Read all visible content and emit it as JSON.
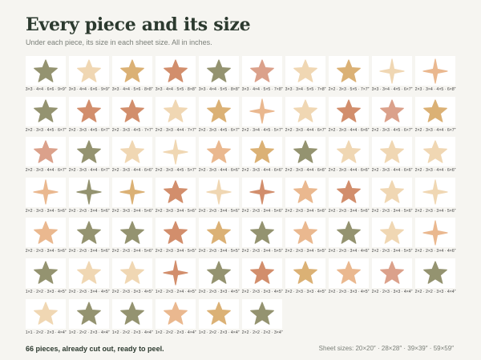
{
  "page": {
    "title": "Every piece and its size",
    "subtitle": "Under each piece, its size in each sheet size. All in inches.",
    "footer_note": "66 pieces, already cut out, ready to peel.",
    "footer_sizes": "Sheet sizes: 20×20″ · 28×28″ · 39×39″ · 59×59″"
  },
  "colors": {
    "olive": "#8c8a64",
    "terracotta": "#cf8560",
    "mustard": "#d9ab6a",
    "peach": "#e9b386",
    "sand": "#efd4ad",
    "blush": "#d99a82",
    "background": "#f6f5f1",
    "card": "#ffffff"
  },
  "pieces": [
    {
      "shape": "star",
      "color": "olive",
      "caption": "3×3 · 4×4 · 6×6 · 9×9″"
    },
    {
      "shape": "star",
      "color": "sand",
      "caption": "3×3 · 4×4 · 6×6 · 9×9″"
    },
    {
      "shape": "star",
      "color": "mustard",
      "caption": "3×3 · 4×4 · 5×6 · 8×8″"
    },
    {
      "shape": "star",
      "color": "terracotta",
      "caption": "3×3 · 4×4 · 5×5 · 8×8″"
    },
    {
      "shape": "star",
      "color": "olive",
      "caption": "3×3 · 4×4 · 5×5 · 8×8″"
    },
    {
      "shape": "star",
      "color": "blush",
      "caption": "3×3 · 4×4 · 5×5 · 7×8″"
    },
    {
      "shape": "star",
      "color": "sand",
      "caption": "3×3 · 3×4 · 5×5 · 7×8″"
    },
    {
      "shape": "star",
      "color": "mustard",
      "caption": "2×2 · 3×3 · 5×5 · 7×7″"
    },
    {
      "shape": "sparkle",
      "color": "sand",
      "caption": "3×3 · 3×4 · 4×5 · 6×7″"
    },
    {
      "shape": "sparkle",
      "color": "peach",
      "caption": "2×3 · 3×4 · 4×5 · 6×8″"
    },
    {
      "shape": "star",
      "color": "olive",
      "caption": "2×2 · 3×3 · 4×5 · 6×7″"
    },
    {
      "shape": "star",
      "color": "terracotta",
      "caption": "2×2 · 3×3 · 4×5 · 6×7″"
    },
    {
      "shape": "star",
      "color": "terracotta",
      "caption": "2×2 · 3×3 · 4×5 · 7×7″"
    },
    {
      "shape": "star",
      "color": "sand",
      "caption": "2×2 · 3×3 · 4×4 · 7×7″"
    },
    {
      "shape": "star",
      "color": "mustard",
      "caption": "2×2 · 3×3 · 4×5 · 6×7″"
    },
    {
      "shape": "sparkle",
      "color": "peach",
      "caption": "2×2 · 3×4 · 4×5 · 5×7″"
    },
    {
      "shape": "star",
      "color": "sand",
      "caption": "2×2 · 3×3 · 4×4 · 6×7″"
    },
    {
      "shape": "star",
      "color": "terracotta",
      "caption": "2×2 · 3×3 · 4×4 · 6×6″"
    },
    {
      "shape": "star",
      "color": "blush",
      "caption": "2×2 · 3×3 · 4×5 · 6×7″"
    },
    {
      "shape": "star",
      "color": "mustard",
      "caption": "2×2 · 3×3 · 4×4 · 6×7″"
    },
    {
      "shape": "star",
      "color": "blush",
      "caption": "2×2 · 3×3 · 4×4 · 6×7″"
    },
    {
      "shape": "star",
      "color": "olive",
      "caption": "2×2 · 3×3 · 4×4 · 6×7″"
    },
    {
      "shape": "star",
      "color": "sand",
      "caption": "2×2 · 3×3 · 4×4 · 6×6″"
    },
    {
      "shape": "sparkle",
      "color": "sand",
      "caption": "2×2 · 3×3 · 4×5 · 5×7″"
    },
    {
      "shape": "star",
      "color": "peach",
      "caption": "2×2 · 3×3 · 4×4 · 6×6″"
    },
    {
      "shape": "star",
      "color": "mustard",
      "caption": "2×2 · 3×3 · 4×4 · 6×6″"
    },
    {
      "shape": "star",
      "color": "olive",
      "caption": "2×2 · 3×3 · 4×4 · 6×6″"
    },
    {
      "shape": "star",
      "color": "sand",
      "caption": "2×2 · 3×3 · 4×4 · 6×6″"
    },
    {
      "shape": "star",
      "color": "sand",
      "caption": "2×2 · 3×3 · 4×4 · 6×6″"
    },
    {
      "shape": "star",
      "color": "sand",
      "caption": "2×2 · 3×3 · 4×4 · 6×6″"
    },
    {
      "shape": "sparkle",
      "color": "peach",
      "caption": "2×2 · 3×3 · 3×4 · 5×6″"
    },
    {
      "shape": "sparkle",
      "color": "olive",
      "caption": "2×2 · 2×3 · 3×4 · 5×6″"
    },
    {
      "shape": "sparkle",
      "color": "mustard",
      "caption": "2×2 · 3×3 · 3×4 · 5×6″"
    },
    {
      "shape": "star",
      "color": "terracotta",
      "caption": "2×2 · 3×3 · 3×4 · 5×6″"
    },
    {
      "shape": "sparkle",
      "color": "sand",
      "caption": "2×2 · 2×3 · 3×4 · 5×6″"
    },
    {
      "shape": "sparkle",
      "color": "terracotta",
      "caption": "2×2 · 2×3 · 3×4 · 5×6″"
    },
    {
      "shape": "star",
      "color": "peach",
      "caption": "2×2 · 2×3 · 3×4 · 5×6″"
    },
    {
      "shape": "star",
      "color": "terracotta",
      "caption": "2×2 · 2×3 · 3×4 · 5×6″"
    },
    {
      "shape": "star",
      "color": "sand",
      "caption": "2×2 · 2×3 · 3×4 · 5×6″"
    },
    {
      "shape": "sparkle",
      "color": "sand",
      "caption": "2×2 · 2×3 · 3×4 · 5×6″"
    },
    {
      "shape": "star",
      "color": "peach",
      "caption": "2×2 · 2×3 · 3×4 · 5×6″"
    },
    {
      "shape": "star",
      "color": "olive",
      "caption": "2×2 · 2×3 · 3×4 · 5×6″"
    },
    {
      "shape": "star",
      "color": "olive",
      "caption": "2×2 · 2×3 · 3×4 · 5×6″"
    },
    {
      "shape": "star",
      "color": "terracotta",
      "caption": "2×2 · 2×3 · 3×4 · 5×5″"
    },
    {
      "shape": "star",
      "color": "mustard",
      "caption": "2×2 · 2×3 · 3×4 · 5×5″"
    },
    {
      "shape": "star",
      "color": "olive",
      "caption": "2×2 · 2×3 · 3×4 · 5×5″"
    },
    {
      "shape": "star",
      "color": "peach",
      "caption": "2×2 · 2×3 · 3×4 · 5×5″"
    },
    {
      "shape": "star",
      "color": "olive",
      "caption": "2×2 · 2×3 · 3×4 · 4×6″"
    },
    {
      "shape": "star",
      "color": "sand",
      "caption": "2×2 · 2×3 · 3×4 · 5×5″"
    },
    {
      "shape": "sparkle",
      "color": "peach",
      "caption": "2×2 · 2×3 · 3×4 · 4×6″"
    },
    {
      "shape": "star",
      "color": "olive",
      "caption": "1×2 · 2×2 · 3×3 · 4×5″"
    },
    {
      "shape": "star",
      "color": "sand",
      "caption": "2×2 · 2×3 · 3×4 · 4×5″"
    },
    {
      "shape": "star",
      "color": "sand",
      "caption": "2×2 · 2×3 · 3×3 · 4×5″"
    },
    {
      "shape": "sparkle",
      "color": "terracotta",
      "caption": "1×2 · 2×3 · 2×4 · 4×5″"
    },
    {
      "shape": "star",
      "color": "olive",
      "caption": "2×2 · 2×3 · 3×3 · 4×5″"
    },
    {
      "shape": "star",
      "color": "terracotta",
      "caption": "2×2 · 2×3 · 3×3 · 4×5″"
    },
    {
      "shape": "star",
      "color": "mustard",
      "caption": "2×2 · 2×3 · 3×3 · 4×5″"
    },
    {
      "shape": "star",
      "color": "peach",
      "caption": "2×2 · 2×3 · 3×3 · 4×5″"
    },
    {
      "shape": "star",
      "color": "blush",
      "caption": "2×2 · 2×3 · 3×3 · 4×4″"
    },
    {
      "shape": "star",
      "color": "olive",
      "caption": "2×2 · 2×2 · 3×3 · 4×4″"
    },
    {
      "shape": "star",
      "color": "sand",
      "caption": "1×1 · 2×2 · 2×3 · 4×4″"
    },
    {
      "shape": "star",
      "color": "olive",
      "caption": "1×2 · 2×2 · 2×3 · 4×4″"
    },
    {
      "shape": "star",
      "color": "olive",
      "caption": "1×2 · 2×2 · 2×3 · 4×4″"
    },
    {
      "shape": "star",
      "color": "peach",
      "caption": "1×2 · 2×2 · 2×3 · 4×4″"
    },
    {
      "shape": "star",
      "color": "mustard",
      "caption": "1×2 · 2×2 · 2×3 · 4×4″"
    },
    {
      "shape": "star",
      "color": "olive",
      "caption": "2×2 · 2×2 · 2×2 · 3×4″"
    }
  ]
}
